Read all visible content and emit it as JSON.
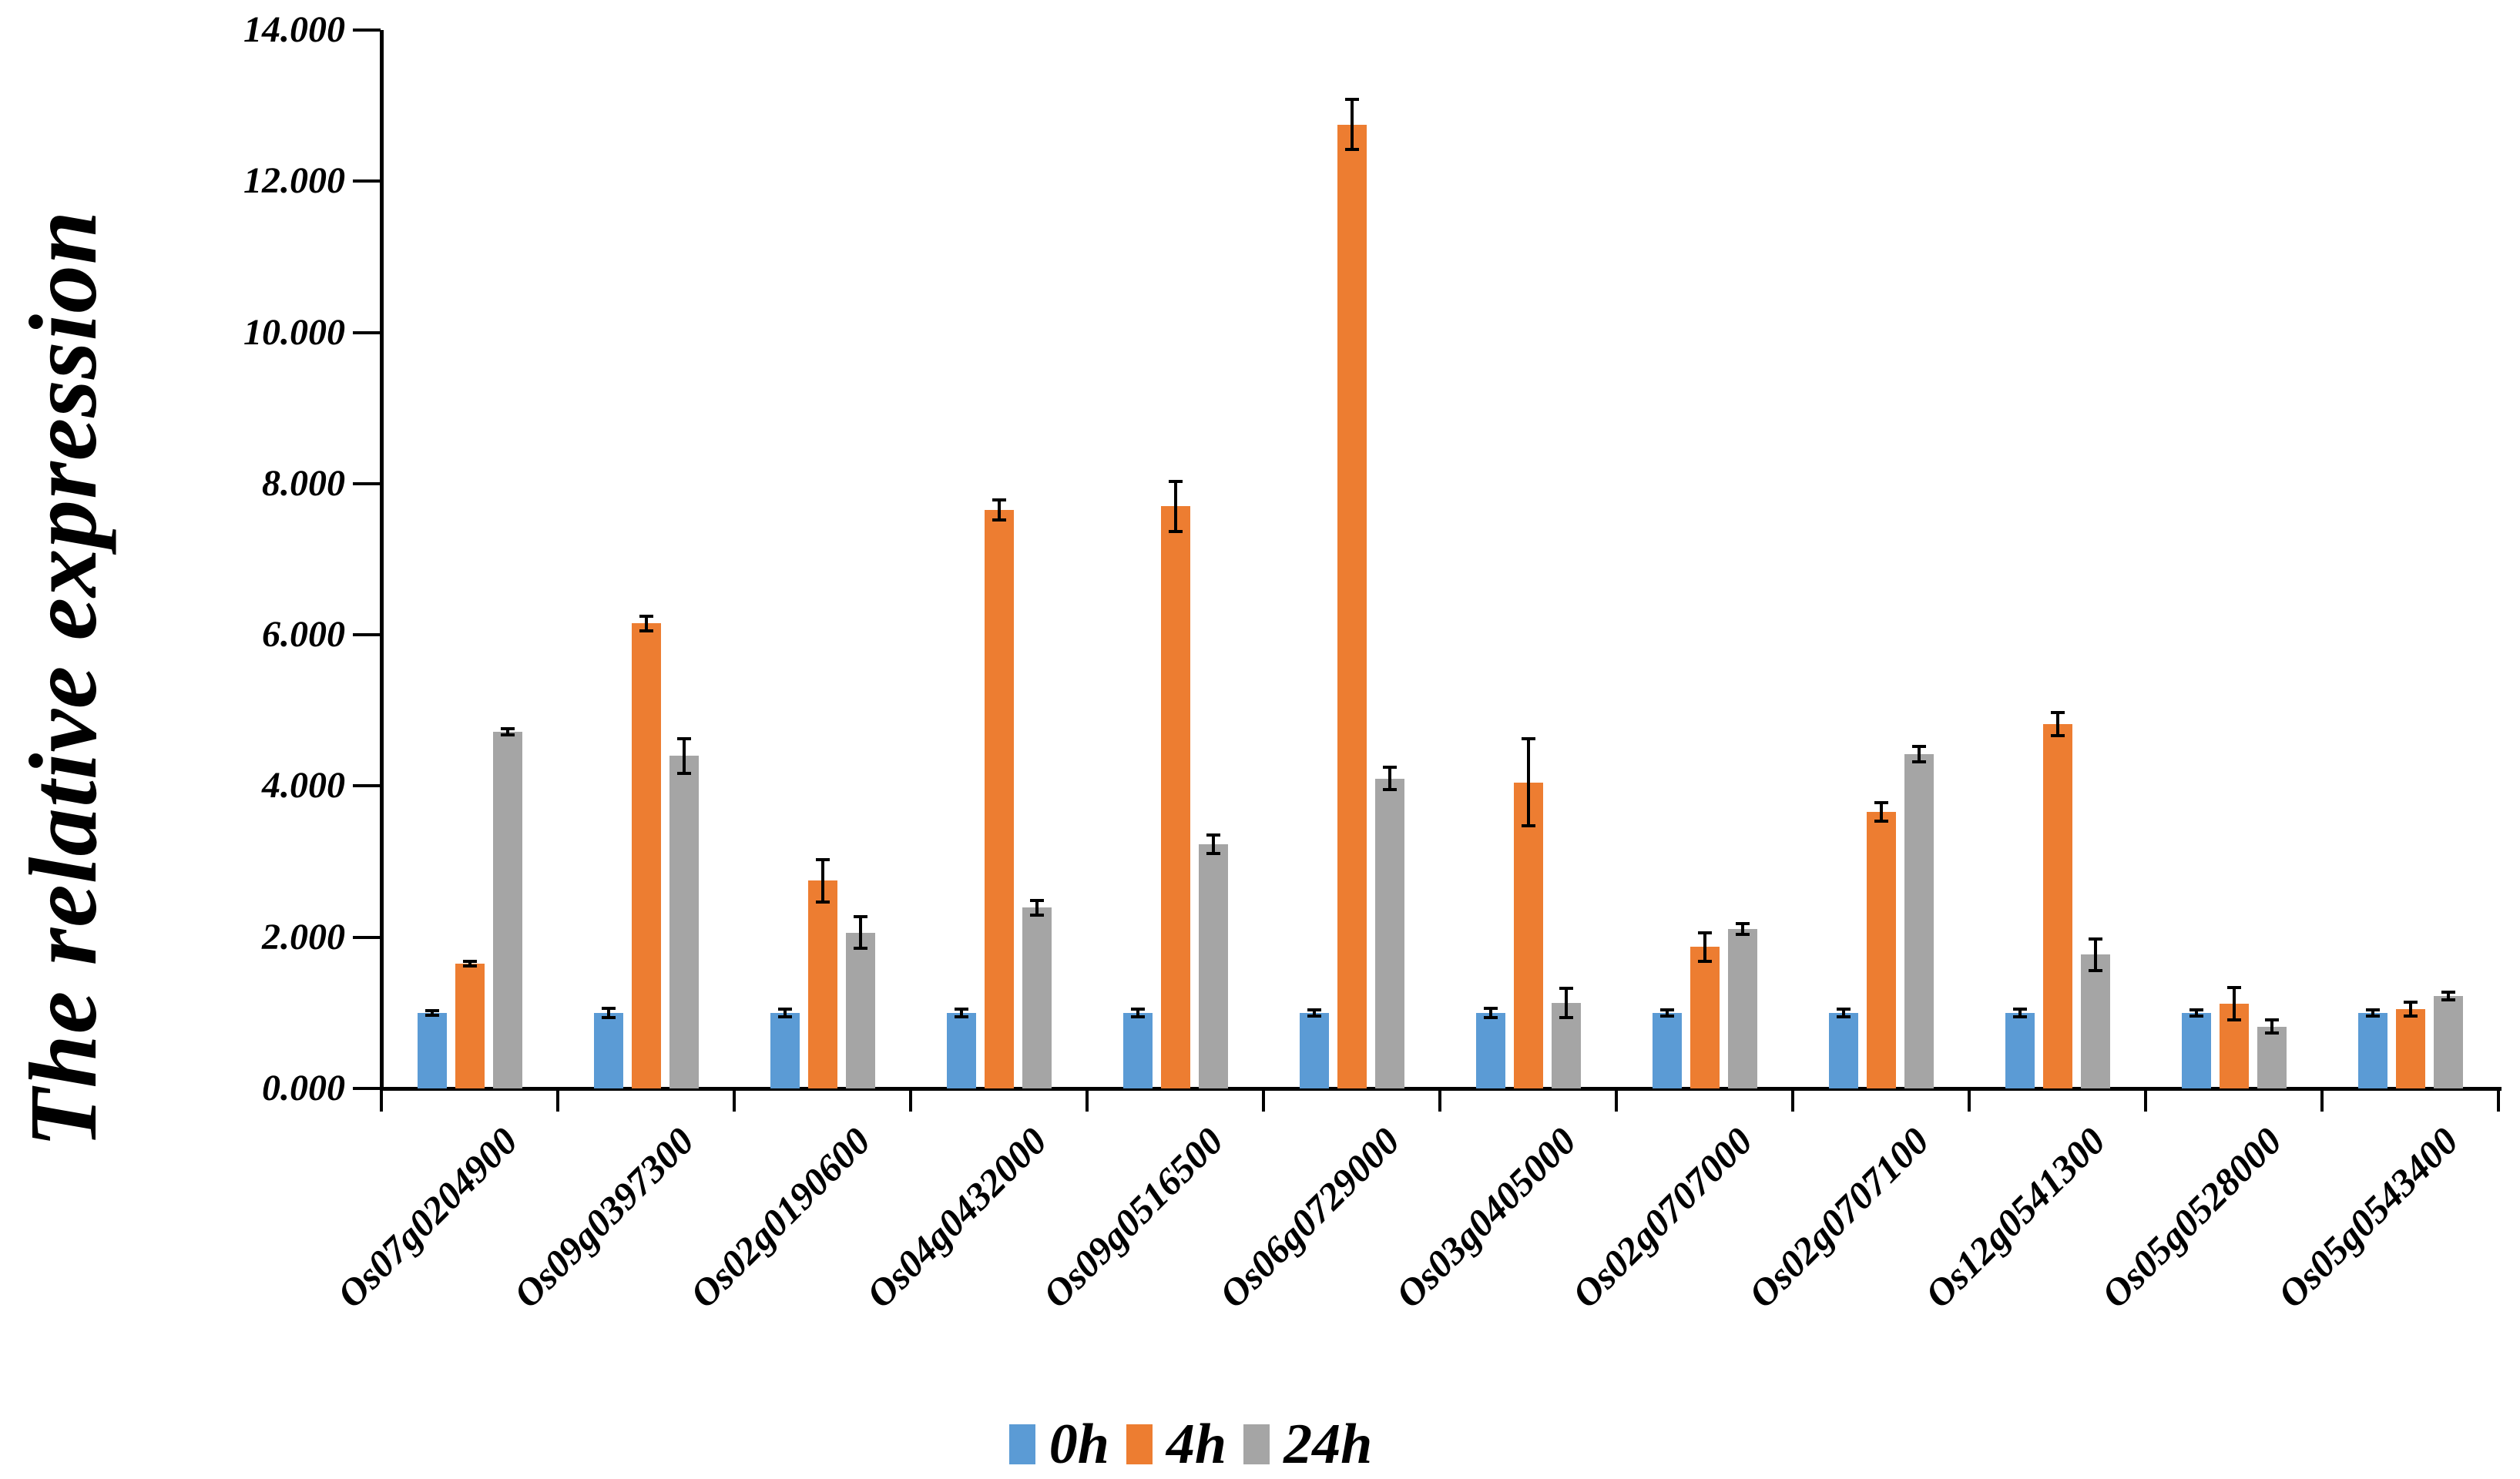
{
  "chart_data": {
    "type": "bar",
    "title": "",
    "ylabel": "The relative expression",
    "xlabel": "",
    "grid": false,
    "legend_position": "bottom-center",
    "categories": [
      "Os07g0204900",
      "Os09g0397300",
      "Os02g0190600",
      "Os04g0432000",
      "Os09g0516500",
      "Os06g0729000",
      "Os03g0405000",
      "Os02g0707000",
      "Os02g0707100",
      "Os12g0541300",
      "Os05g0528000",
      "Os05g0543400"
    ],
    "series": [
      {
        "name": "0h",
        "color": "#5B9BD5",
        "values": [
          1.0,
          1.0,
          1.0,
          1.0,
          1.0,
          1.0,
          1.0,
          1.0,
          1.0,
          1.0,
          1.0,
          1.0
        ],
        "errors": [
          0.03,
          0.06,
          0.05,
          0.05,
          0.05,
          0.04,
          0.06,
          0.04,
          0.05,
          0.05,
          0.04,
          0.04
        ]
      },
      {
        "name": "4h",
        "color": "#ED7D31",
        "values": [
          1.65,
          6.15,
          2.75,
          7.65,
          7.7,
          12.75,
          4.05,
          1.87,
          3.66,
          4.82,
          1.12,
          1.05
        ],
        "errors": [
          0.03,
          0.1,
          0.28,
          0.13,
          0.33,
          0.33,
          0.58,
          0.19,
          0.12,
          0.15,
          0.21,
          0.09
        ]
      },
      {
        "name": "24h",
        "color": "#A5A5A5",
        "values": [
          4.72,
          4.4,
          2.06,
          2.39,
          3.23,
          4.1,
          1.13,
          2.11,
          4.42,
          1.77,
          0.82,
          1.22
        ],
        "errors": [
          0.04,
          0.23,
          0.21,
          0.1,
          0.12,
          0.15,
          0.19,
          0.07,
          0.1,
          0.21,
          0.09,
          0.05
        ]
      }
    ],
    "y_axis": {
      "min": 0,
      "max": 14,
      "step": 2,
      "tick_labels": [
        "0.000",
        "2.000",
        "4.000",
        "6.000",
        "8.000",
        "10.000",
        "12.000",
        "14.000"
      ]
    },
    "error_bar_color": "#000000"
  }
}
